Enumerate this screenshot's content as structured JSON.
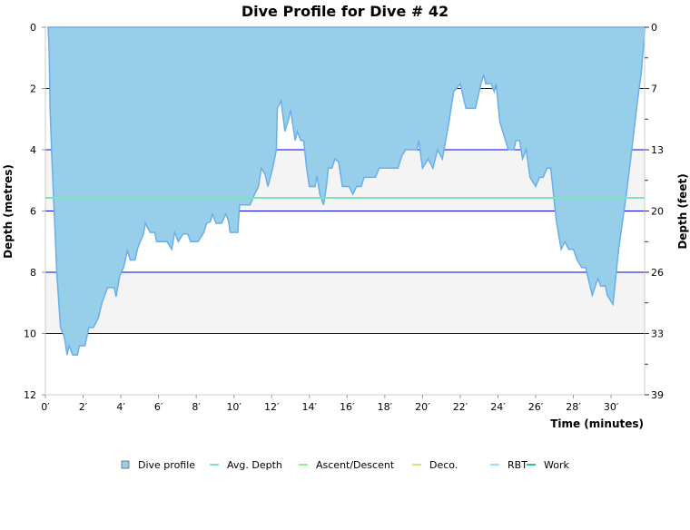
{
  "chart_data": {
    "type": "area",
    "title": "Dive Profile for Dive # 42",
    "xlabel": "Time (minutes)",
    "ylabel": "Depth (metres)",
    "y2label": "Depth (feet)",
    "xlim": [
      0,
      31.8
    ],
    "ylim": [
      0,
      12
    ],
    "y_inverted": true,
    "x_ticks": [
      0,
      2,
      4,
      6,
      8,
      10,
      12,
      14,
      16,
      18,
      20,
      22,
      24,
      26,
      28,
      30
    ],
    "x_tick_suffix": "′",
    "y_ticks": [
      0,
      2,
      4,
      6,
      8,
      10,
      12
    ],
    "y2_ticks": [
      "0",
      "7",
      "13",
      "20",
      "26",
      "33",
      "39"
    ],
    "gridlines_m": [
      2,
      4,
      6,
      8,
      10
    ],
    "shaded_bands_m": [
      [
        4,
        6
      ],
      [
        8,
        10
      ]
    ],
    "avg_depth_m": 5.57,
    "colors": {
      "profile_fill": "#97cfea",
      "profile_line": "#6aaeea",
      "grid": "#0000ee",
      "avg": "#7fe3b8",
      "band": "#f4f4f4"
    },
    "series": [
      {
        "name": "Dive profile",
        "time": [
          0.15,
          0.2,
          0.25,
          0.35,
          0.5,
          0.6,
          0.8,
          1.0,
          1.15,
          1.25,
          1.45,
          1.7,
          1.8,
          2.1,
          2.3,
          2.55,
          2.8,
          3.0,
          3.3,
          3.65,
          3.75,
          3.95,
          4.15,
          4.35,
          4.5,
          4.75,
          4.9,
          5.2,
          5.3,
          5.55,
          5.8,
          5.9,
          6.45,
          6.7,
          6.85,
          7.05,
          7.3,
          7.55,
          7.7,
          8.1,
          8.4,
          8.55,
          8.75,
          8.85,
          9.05,
          9.35,
          9.55,
          9.7,
          9.8,
          10.2,
          10.3,
          10.85,
          11.1,
          11.3,
          11.45,
          11.65,
          11.8,
          12.05,
          12.25,
          12.3,
          12.5,
          12.7,
          12.9,
          13.0,
          13.25,
          13.35,
          13.55,
          13.7,
          13.85,
          14.0,
          14.3,
          14.4,
          14.55,
          14.75,
          14.9,
          15.0,
          15.2,
          15.35,
          15.55,
          15.75,
          16.1,
          16.3,
          16.5,
          16.75,
          16.9,
          17.5,
          17.7,
          18.7,
          18.9,
          19.1,
          19.7,
          19.8,
          20.0,
          20.3,
          20.55,
          20.8,
          21.05,
          21.4,
          21.65,
          22.0,
          22.3,
          22.8,
          23.1,
          23.25,
          23.35,
          23.65,
          23.8,
          23.9,
          24.1,
          24.4,
          24.55,
          24.85,
          24.95,
          25.15,
          25.3,
          25.5,
          25.7,
          26.0,
          26.2,
          26.4,
          26.6,
          26.8,
          27.1,
          27.35,
          27.55,
          27.75,
          28.0,
          28.2,
          28.45,
          28.65,
          29.0,
          29.3,
          29.45,
          29.7,
          29.8,
          30.1,
          30.4,
          30.8,
          31.1,
          31.4,
          31.6,
          31.8
        ],
        "depth": [
          0,
          0.9,
          2.7,
          4.4,
          6.5,
          8,
          9.8,
          10.1,
          10.7,
          10.4,
          10.7,
          10.7,
          10.4,
          10.4,
          9.8,
          9.8,
          9.5,
          9.0,
          8.5,
          8.5,
          8.8,
          8.1,
          7.85,
          7.3,
          7.6,
          7.6,
          7.2,
          6.75,
          6.4,
          6.7,
          6.7,
          7.0,
          7.0,
          7.25,
          6.7,
          7.0,
          6.75,
          6.75,
          7.0,
          7.0,
          6.7,
          6.4,
          6.35,
          6.1,
          6.4,
          6.4,
          6.1,
          6.3,
          6.7,
          6.7,
          5.8,
          5.8,
          5.45,
          5.2,
          4.6,
          4.8,
          5.2,
          4.6,
          4.0,
          2.65,
          2.4,
          3.4,
          3.0,
          2.7,
          3.7,
          3.4,
          3.7,
          3.7,
          4.6,
          5.2,
          5.2,
          4.85,
          5.45,
          5.8,
          5.2,
          4.6,
          4.6,
          4.3,
          4.4,
          5.2,
          5.2,
          5.45,
          5.2,
          5.2,
          4.9,
          4.9,
          4.6,
          4.6,
          4.2,
          4.0,
          4.0,
          3.7,
          4.6,
          4.3,
          4.6,
          4.0,
          4.3,
          3.1,
          2.1,
          1.85,
          2.65,
          2.65,
          1.85,
          1.55,
          1.85,
          1.85,
          2.1,
          1.85,
          3.1,
          3.7,
          4.0,
          4.0,
          3.7,
          3.7,
          4.3,
          4.0,
          4.9,
          5.2,
          4.9,
          4.9,
          4.6,
          4.6,
          6.35,
          7.25,
          7.0,
          7.25,
          7.25,
          7.6,
          7.85,
          7.85,
          8.75,
          8.2,
          8.45,
          8.45,
          8.75,
          9.05,
          7.25,
          5.5,
          4.0,
          2.4,
          1.5,
          0
        ]
      }
    ],
    "legend": {
      "placement": "bottom",
      "items": [
        {
          "label": "Dive profile",
          "color": "#97cfea",
          "swatch": "box"
        },
        {
          "label": "Avg. Depth",
          "color": "#7fe3b8",
          "swatch": "line"
        },
        {
          "label": "Ascent/Descent",
          "color": "#99ee99",
          "swatch": "line"
        },
        {
          "label": "Deco.",
          "color": "#dde27a",
          "swatch": "line"
        },
        {
          "label": "RBT",
          "color": "#9fe0f5",
          "swatch": "line"
        },
        {
          "label": "Work",
          "color": "#33bb99",
          "swatch": "line"
        }
      ]
    }
  }
}
